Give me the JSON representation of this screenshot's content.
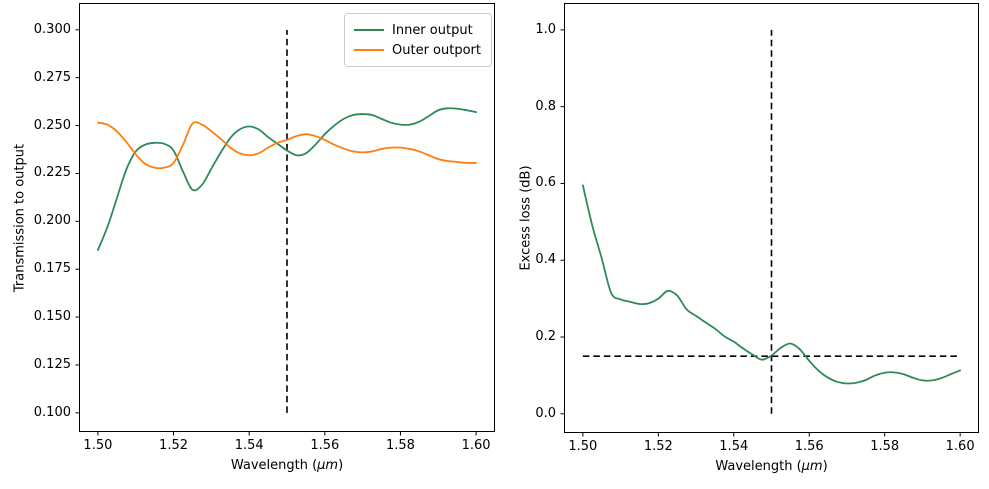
{
  "figure": {
    "background": "#ffffff"
  },
  "chart_data": [
    {
      "type": "line",
      "title": "",
      "xlabel": "Wavelength (μm)",
      "xlabel_parts": {
        "pre": "Wavelength (",
        "math": "μm",
        "post": ")"
      },
      "ylabel": "Transmission to output",
      "xlim": [
        1.495,
        1.605
      ],
      "ylim": [
        0.09,
        0.314
      ],
      "grid": "off",
      "legend": {
        "location": "upper right",
        "entries": [
          "Inner output",
          "Outer outport"
        ]
      },
      "xticks": [
        1.5,
        1.52,
        1.54,
        1.56,
        1.58,
        1.6
      ],
      "xticklabels": [
        "1.50",
        "1.52",
        "1.54",
        "1.56",
        "1.58",
        "1.60"
      ],
      "yticks": [
        0.1,
        0.125,
        0.15,
        0.175,
        0.2,
        0.225,
        0.25,
        0.275,
        0.3
      ],
      "yticklabels": [
        "0.100",
        "0.125",
        "0.150",
        "0.175",
        "0.200",
        "0.225",
        "0.250",
        "0.275",
        "0.300"
      ],
      "x": [
        1.5,
        1.5025,
        1.505,
        1.5075,
        1.51,
        1.5125,
        1.515,
        1.5175,
        1.52,
        1.5225,
        1.525,
        1.5275,
        1.53,
        1.5325,
        1.535,
        1.5375,
        1.54,
        1.5425,
        1.545,
        1.5475,
        1.55,
        1.5525,
        1.555,
        1.5575,
        1.56,
        1.5625,
        1.565,
        1.5675,
        1.57,
        1.5725,
        1.575,
        1.5775,
        1.58,
        1.5825,
        1.585,
        1.5875,
        1.59,
        1.5925,
        1.595,
        1.5975,
        1.6
      ],
      "series": [
        {
          "name": "Inner output",
          "color": "#2e8b57",
          "values": [
            0.185,
            0.197,
            0.212,
            0.227,
            0.2365,
            0.24,
            0.241,
            0.2405,
            0.237,
            0.226,
            0.2165,
            0.219,
            0.2275,
            0.236,
            0.2435,
            0.248,
            0.2495,
            0.248,
            0.244,
            0.2405,
            0.237,
            0.2345,
            0.2355,
            0.24,
            0.2455,
            0.25,
            0.2535,
            0.2555,
            0.256,
            0.2555,
            0.2535,
            0.2515,
            0.2505,
            0.2505,
            0.252,
            0.255,
            0.258,
            0.259,
            0.2588,
            0.258,
            0.257
          ]
        },
        {
          "name": "Outer outport",
          "color": "#ff7f0e",
          "values": [
            0.2515,
            0.2505,
            0.247,
            0.2415,
            0.235,
            0.23,
            0.228,
            0.228,
            0.2305,
            0.24,
            0.251,
            0.2505,
            0.247,
            0.243,
            0.2385,
            0.2355,
            0.2345,
            0.2355,
            0.2385,
            0.241,
            0.2425,
            0.2445,
            0.2455,
            0.2445,
            0.2425,
            0.24,
            0.238,
            0.2365,
            0.236,
            0.2365,
            0.2378,
            0.2385,
            0.2385,
            0.2378,
            0.2365,
            0.2345,
            0.2325,
            0.2315,
            0.231,
            0.2305,
            0.2305
          ]
        }
      ],
      "annotations": [
        {
          "type": "vline",
          "x": 1.55,
          "ymin": 0.1,
          "ymax": 0.3,
          "style": "dashed",
          "color": "#000000"
        }
      ]
    },
    {
      "type": "line",
      "title": "",
      "xlabel": "Wavelength (μm)",
      "xlabel_parts": {
        "pre": "Wavelength (",
        "math": "μm",
        "post": ")"
      },
      "ylabel": "Excess loss (dB)",
      "xlim": [
        1.495,
        1.605
      ],
      "ylim": [
        -0.05,
        1.07
      ],
      "grid": "off",
      "legend": null,
      "xticks": [
        1.5,
        1.52,
        1.54,
        1.56,
        1.58,
        1.6
      ],
      "xticklabels": [
        "1.50",
        "1.52",
        "1.54",
        "1.56",
        "1.58",
        "1.60"
      ],
      "yticks": [
        0.0,
        0.2,
        0.4,
        0.6,
        0.8,
        1.0
      ],
      "yticklabels": [
        "0.0",
        "0.2",
        "0.4",
        "0.6",
        "0.8",
        "1.0"
      ],
      "x": [
        1.5,
        1.5025,
        1.505,
        1.5075,
        1.51,
        1.5125,
        1.515,
        1.5175,
        1.52,
        1.5225,
        1.525,
        1.5275,
        1.53,
        1.5325,
        1.535,
        1.5375,
        1.54,
        1.5425,
        1.545,
        1.5475,
        1.55,
        1.5525,
        1.555,
        1.5575,
        1.56,
        1.5625,
        1.565,
        1.5675,
        1.57,
        1.5725,
        1.575,
        1.5775,
        1.58,
        1.5825,
        1.585,
        1.5875,
        1.59,
        1.5925,
        1.595,
        1.5975,
        1.6
      ],
      "series": [
        {
          "name": "Excess loss",
          "color": "#2e8b57",
          "values": [
            0.595,
            0.49,
            0.405,
            0.315,
            0.298,
            0.292,
            0.286,
            0.288,
            0.3,
            0.32,
            0.308,
            0.272,
            0.255,
            0.238,
            0.222,
            0.202,
            0.188,
            0.17,
            0.154,
            0.141,
            0.152,
            0.172,
            0.183,
            0.168,
            0.138,
            0.112,
            0.094,
            0.083,
            0.079,
            0.081,
            0.088,
            0.1,
            0.107,
            0.108,
            0.103,
            0.094,
            0.087,
            0.087,
            0.093,
            0.103,
            0.113
          ]
        }
      ],
      "annotations": [
        {
          "type": "vline",
          "x": 1.55,
          "ymin": 0.0,
          "ymax": 1.0,
          "style": "dashed",
          "color": "#000000"
        },
        {
          "type": "hline",
          "y": 0.15,
          "xmin": 1.5,
          "xmax": 1.6,
          "style": "dashed",
          "color": "#000000"
        }
      ]
    }
  ]
}
